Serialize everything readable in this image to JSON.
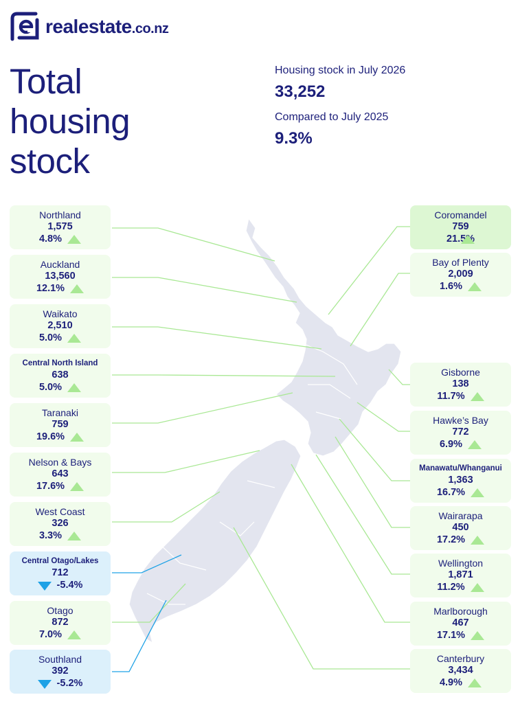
{
  "brand": {
    "name": "realestate",
    "suffix": ".co.nz",
    "colors": {
      "navy": "#1c1f7a",
      "up": "#a9e894",
      "down": "#1ea2e6"
    }
  },
  "title": {
    "line1": "Total",
    "line2": "housing",
    "line3": "stock"
  },
  "summary": {
    "stock_label": "Housing stock in July 2026",
    "stock_value": "33,252",
    "compare_label": "Compared to July 2025",
    "compare_value": "9.3%"
  },
  "regions_left": [
    {
      "name": "Northland",
      "value": "1,575",
      "change": "4.8%",
      "direction": "up"
    },
    {
      "name": "Auckland",
      "value": "13,560",
      "change": "12.1%",
      "direction": "up"
    },
    {
      "name": "Waikato",
      "value": "2,510",
      "change": "5.0%",
      "direction": "up"
    },
    {
      "name": "Central North Island",
      "value": "638",
      "change": "5.0%",
      "direction": "up"
    },
    {
      "name": "Taranaki",
      "value": "759",
      "change": "19.6%",
      "direction": "up"
    },
    {
      "name": "Nelson & Bays",
      "value": "643",
      "change": "17.6%",
      "direction": "up"
    },
    {
      "name": "West Coast",
      "value": "326",
      "change": "3.3%",
      "direction": "up"
    },
    {
      "name": "Central Otago/Lakes",
      "value": "712",
      "change": "-5.4%",
      "direction": "down"
    },
    {
      "name": "Otago",
      "value": "872",
      "change": "7.0%",
      "direction": "up"
    },
    {
      "name": "Southland",
      "value": "392",
      "change": "-5.2%",
      "direction": "down"
    }
  ],
  "regions_right": [
    {
      "name": "Coromandel",
      "value": "759",
      "change": "21.5%",
      "direction": "up"
    },
    {
      "name": "Bay of Plenty",
      "value": "2,009",
      "change": "1.6%",
      "direction": "up"
    },
    {
      "name": "Gisborne",
      "value": "138",
      "change": "11.7%",
      "direction": "up"
    },
    {
      "name": "Hawke’s Bay",
      "value": "772",
      "change": "6.9%",
      "direction": "up"
    },
    {
      "name": "Manawatu/Whanganui",
      "value": "1,363",
      "change": "16.7%",
      "direction": "up"
    },
    {
      "name": "Wairarapa",
      "value": "450",
      "change": "17.2%",
      "direction": "up"
    },
    {
      "name": "Wellington",
      "value": "1,871",
      "change": "11.2%",
      "direction": "up"
    },
    {
      "name": "Marlborough",
      "value": "467",
      "change": "17.1%",
      "direction": "up"
    },
    {
      "name": "Canterbury",
      "value": "3,434",
      "change": "4.9%",
      "direction": "up"
    }
  ]
}
